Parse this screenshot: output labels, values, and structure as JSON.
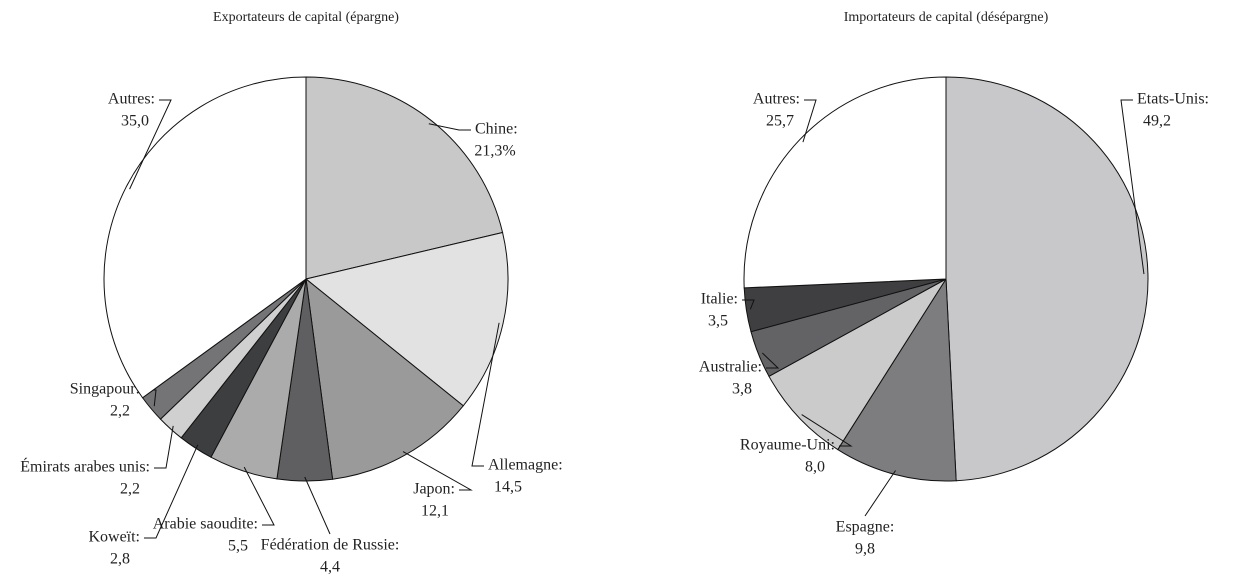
{
  "chart_data": [
    {
      "type": "pie",
      "title": "Exportateurs de capital (épargne)",
      "categories": [
        "Chine:",
        "Allemagne:",
        "Japon:",
        "Fédération de Russie:",
        "Arabie saoudite:",
        "Koweït:",
        "Émirats arabes unis:",
        "Singapour:",
        "Autres:"
      ],
      "values": [
        21.3,
        14.5,
        12.1,
        4.4,
        5.5,
        2.8,
        2.2,
        2.2,
        35.0
      ],
      "value_labels": [
        "21,3%",
        "14,5",
        "12,1",
        "4,4",
        "5,5",
        "2,8",
        "2,2",
        "2,2",
        "35,0"
      ],
      "colors": [
        "#c8c8c8",
        "#e2e2e2",
        "#9a9a9b",
        "#5f5f61",
        "#ababab",
        "#3d3e40",
        "#d0d0d0",
        "#747476",
        "#ffffff"
      ]
    },
    {
      "type": "pie",
      "title": "Importateurs de capital (désépargne)",
      "categories": [
        "Etats-Unis:",
        "Espagne:",
        "Royaume-Uni:",
        "Australie:",
        "Italie:",
        "Autres:"
      ],
      "values": [
        49.2,
        9.8,
        8.0,
        3.8,
        3.5,
        25.7
      ],
      "value_labels": [
        "49,2",
        "9,8",
        "8,0",
        "3,8",
        "3,5",
        "25,7"
      ],
      "colors": [
        "#c8c8ca",
        "#7d7d7f",
        "#cbcbcb",
        "#636365",
        "#3f3f41",
        "#ffffff"
      ]
    }
  ]
}
